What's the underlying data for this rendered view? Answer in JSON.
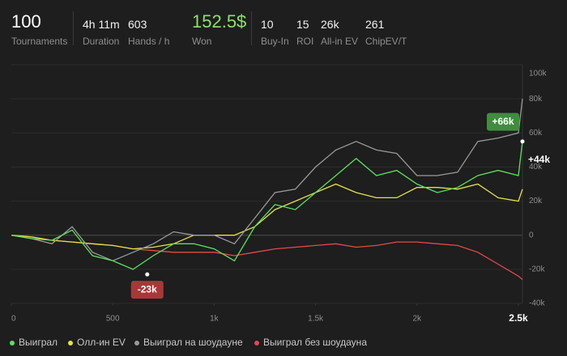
{
  "stats": [
    {
      "value": "100",
      "label": "Tournaments"
    },
    {
      "value": "4h 11m",
      "label": "Duration"
    },
    {
      "value": "603",
      "label": "Hands / h"
    },
    {
      "value": "152.5$",
      "label": "Won"
    },
    {
      "value": "10",
      "label": "Buy-In"
    },
    {
      "value": "15",
      "label": "ROI"
    },
    {
      "value": "26k",
      "label": "All-in EV"
    },
    {
      "value": "261",
      "label": "ChipEV/T"
    }
  ],
  "chart_data": {
    "type": "line",
    "x": [
      0,
      100,
      200,
      300,
      400,
      500,
      600,
      700,
      800,
      900,
      1000,
      1100,
      1200,
      1300,
      1400,
      1500,
      1600,
      1700,
      1800,
      1900,
      2000,
      2100,
      2200,
      2300,
      2400,
      2500,
      2520
    ],
    "series": [
      {
        "name": "Выиграл",
        "color": "#5fe05f",
        "values": [
          0,
          -2000,
          -3000,
          3000,
          -12000,
          -15000,
          -20000,
          -12000,
          -5000,
          -5000,
          -8000,
          -15000,
          5000,
          18000,
          15000,
          25000,
          35000,
          45000,
          35000,
          38000,
          30000,
          25000,
          28000,
          35000,
          38000,
          35000,
          55000
        ]
      },
      {
        "name": "Олл-ин EV",
        "color": "#e8e04a",
        "values": [
          0,
          -1000,
          -3000,
          -4000,
          -5000,
          -6000,
          -8000,
          -7000,
          -5000,
          0,
          0,
          0,
          5000,
          15000,
          20000,
          25000,
          30000,
          25000,
          22000,
          22000,
          28000,
          28000,
          27000,
          30000,
          22000,
          20000,
          27000
        ]
      },
      {
        "name": "Выиграл на шоудауне",
        "color": "#9a9a9a",
        "values": [
          0,
          -2000,
          -5000,
          5000,
          -10000,
          -15000,
          -10000,
          -5000,
          2000,
          0,
          0,
          -5000,
          10000,
          25000,
          27000,
          40000,
          50000,
          55000,
          50000,
          48000,
          35000,
          35000,
          37000,
          55000,
          57000,
          60000,
          80000
        ]
      },
      {
        "name": "Выиграл без шоудауна",
        "color": "#e5484d",
        "values": [
          0,
          -2000,
          -3000,
          -4000,
          -5000,
          -6000,
          -8000,
          -9000,
          -10000,
          -10000,
          -10000,
          -12000,
          -10000,
          -8000,
          -7000,
          -6000,
          -5000,
          -7000,
          -6000,
          -4000,
          -4000,
          -5000,
          -6000,
          -10000,
          -17000,
          -24000,
          -26000
        ]
      }
    ],
    "xlim": [
      0,
      2520
    ],
    "xticks": [
      0,
      500,
      {
        "value": 1000,
        "label": "1k"
      },
      {
        "value": 1500,
        "label": "1.5k"
      },
      {
        "value": 2000,
        "label": "2k"
      },
      {
        "value": 2500,
        "label": "2.5k"
      }
    ],
    "ylim": [
      -40000,
      100000
    ],
    "yticks": [
      {
        "value": -40000,
        "label": "-40k"
      },
      {
        "value": -20000,
        "label": "-20k"
      },
      0,
      {
        "value": 20000,
        "label": "20k"
      },
      {
        "value": 40000,
        "label": "40k"
      },
      {
        "value": 60000,
        "label": "60k"
      },
      {
        "value": 80000,
        "label": "80k"
      },
      {
        "value": 100000,
        "label": "100k"
      }
    ],
    "grid": true,
    "annotations": [
      {
        "x": 2520,
        "value": 66000,
        "label": "+66k",
        "style": "box",
        "color": "#3e8e3e"
      },
      {
        "x": 2520,
        "value": 44000,
        "label": "+44k",
        "style": "text",
        "color": "#ffffff"
      },
      {
        "x": 670,
        "value": -23000,
        "label": "-23k",
        "style": "box",
        "color": "#a83838"
      }
    ]
  }
}
